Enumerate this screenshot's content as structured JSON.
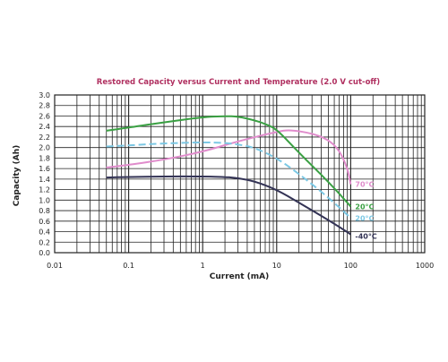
{
  "chart_data": {
    "type": "line",
    "title": "Restored Capacity versus Current and Temperature (2.0 V cut-off)",
    "title_color": "#b03060",
    "xlabel": "Current (mA)",
    "ylabel": "Capacity (Ah)",
    "x_scale": "log",
    "xlim": [
      0.01,
      1000
    ],
    "ylim": [
      0.0,
      3.0
    ],
    "x_ticks": [
      "0.01",
      "0.1",
      "1",
      "10",
      "100",
      "1000"
    ],
    "y_ticks": [
      "0.0",
      "0.2",
      "0.4",
      "0.6",
      "0.8",
      "1.0",
      "1.2",
      "1.4",
      "1.6",
      "1.8",
      "2.0",
      "2.2",
      "2.4",
      "2.6",
      "2.8",
      "3.0"
    ],
    "grid": true,
    "series": [
      {
        "name": "70°C",
        "color": "#e08ccc",
        "dashed": false,
        "x": [
          0.05,
          0.1,
          0.3,
          1,
          3,
          10,
          15,
          30,
          50,
          70,
          90,
          100
        ],
        "y": [
          1.62,
          1.67,
          1.77,
          1.92,
          2.12,
          2.3,
          2.34,
          2.27,
          2.15,
          1.95,
          1.62,
          1.3
        ]
      },
      {
        "name": "20°C",
        "color": "#3aa043",
        "dashed": false,
        "x": [
          0.05,
          0.1,
          0.3,
          1,
          2,
          3,
          5,
          7,
          10,
          20,
          50,
          100
        ],
        "y": [
          2.32,
          2.38,
          2.48,
          2.58,
          2.6,
          2.59,
          2.52,
          2.45,
          2.35,
          1.9,
          1.35,
          0.88
        ]
      },
      {
        "name": "20°C",
        "color": "#7cc8e4",
        "dashed": true,
        "x": [
          0.05,
          0.1,
          0.3,
          1,
          2,
          3,
          5,
          10,
          20,
          50,
          100
        ],
        "y": [
          2.02,
          2.04,
          2.08,
          2.1,
          2.09,
          2.06,
          2.0,
          1.8,
          1.5,
          1.05,
          0.66
        ]
      },
      {
        "name": "-40°C",
        "color": "#333355",
        "dashed": false,
        "x": [
          0.05,
          0.1,
          0.3,
          1,
          2,
          3,
          5,
          10,
          20,
          50,
          100
        ],
        "y": [
          1.43,
          1.44,
          1.45,
          1.45,
          1.44,
          1.42,
          1.36,
          1.2,
          0.95,
          0.62,
          0.35
        ]
      }
    ]
  }
}
